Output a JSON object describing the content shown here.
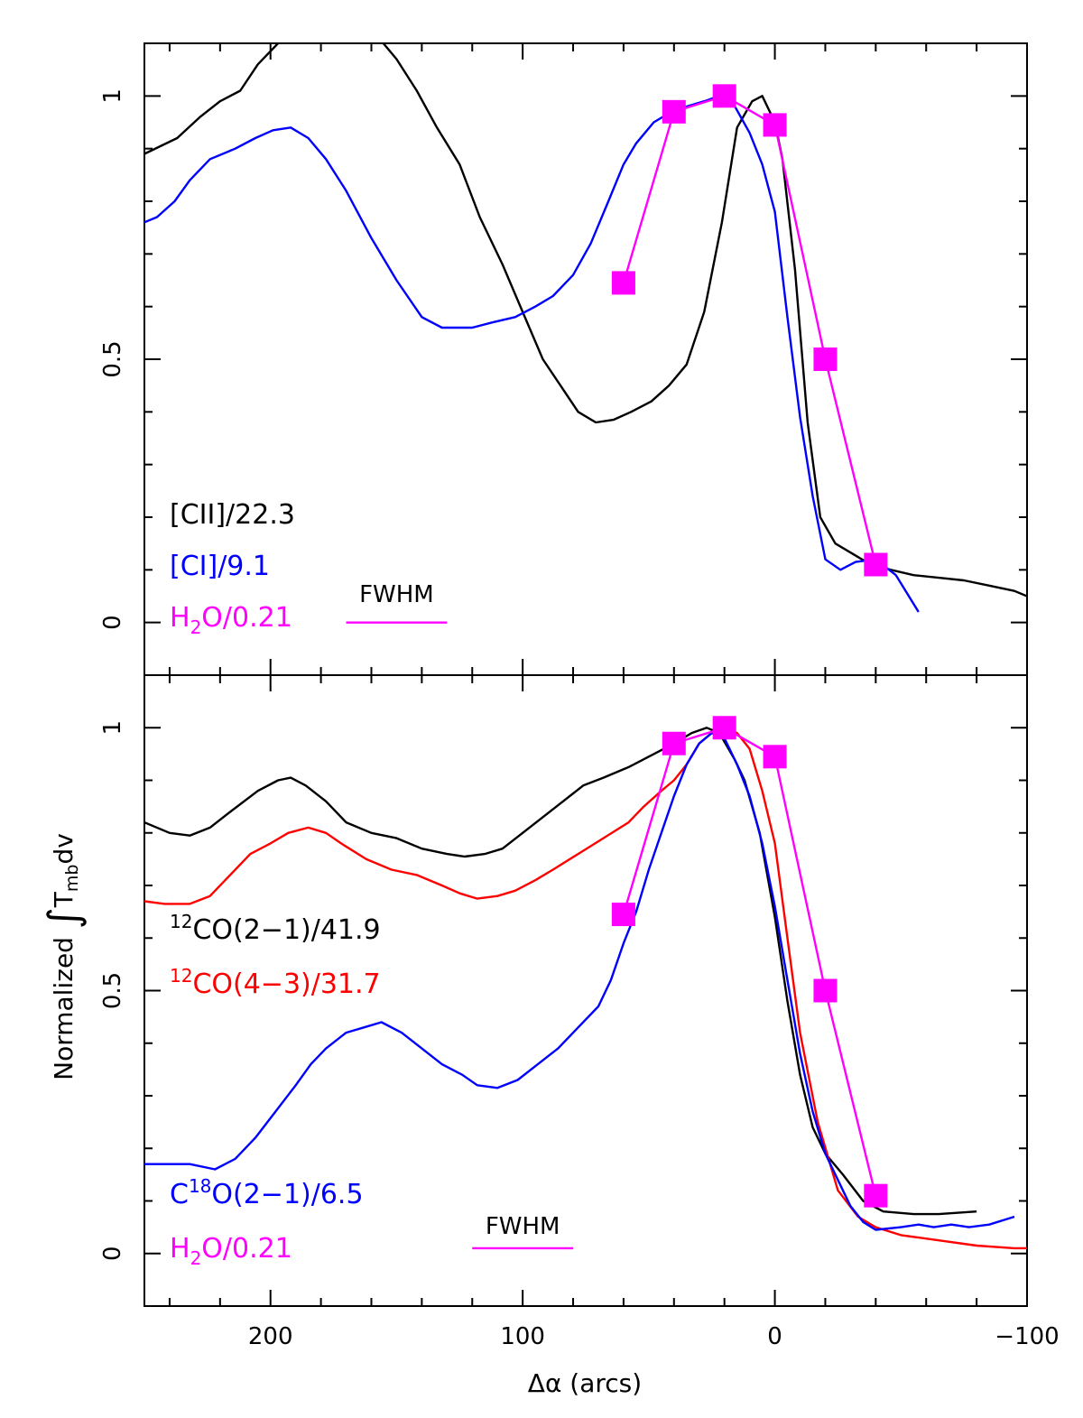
{
  "colors": {
    "cii": "#000000",
    "ci": "#0000ff",
    "h2o": "#ff00ff",
    "co21": "#000000",
    "co43": "#ff0000",
    "c18o": "#0000ff"
  },
  "chart_data": {
    "type": "line",
    "xlabel": "Δα (arcs)",
    "ylabel": "Normalized ∫T_mb dv",
    "ylabel_parts": {
      "prefix": "Normalized ",
      "integral": "∫",
      "t": "T",
      "sub": "mb",
      "suffix": "dv"
    },
    "xlim": [
      250,
      -100
    ],
    "x_ticks": [
      200,
      100,
      0,
      -100
    ],
    "x_tick_labels": [
      "200",
      "100",
      "0",
      "−100"
    ],
    "grid": false,
    "panels": [
      {
        "ylim": [
          -0.1,
          1.1
        ],
        "y_ticks": [
          0,
          0.5,
          1
        ],
        "y_tick_labels": [
          "0",
          "0.5",
          "1"
        ],
        "fwhm": {
          "label": "FWHM",
          "x_start": 170,
          "x_end": 130,
          "y": 0
        },
        "legend": [
          {
            "label": "[CII]/22.3",
            "series": 0
          },
          {
            "label": "[CI]/9.1",
            "series": 1
          },
          {
            "label_main": "H",
            "label_sub": "2",
            "label_rest": "O/0.21",
            "series": 2
          }
        ],
        "series": [
          {
            "name": "[CII]/22.3",
            "color_key": "cii",
            "x": [
              250,
              237,
              228,
              220,
              212,
              205,
              197,
              188,
              180,
              170,
              163,
              157,
              150,
              142,
              134,
              125,
              117,
              108,
              100,
              92,
              85,
              78,
              71,
              64,
              57,
              49,
              42,
              35,
              28,
              21,
              15,
              9,
              5,
              0,
              -3,
              -8,
              -13,
              -18,
              -24,
              -31,
              -38,
              -46,
              -55,
              -65,
              -75,
              -85,
              -95,
              -100
            ],
            "y": [
              0.89,
              0.92,
              0.96,
              0.99,
              1.01,
              1.06,
              1.1,
              1.14,
              1.17,
              1.17,
              1.13,
              1.11,
              1.07,
              1.01,
              0.94,
              0.87,
              0.77,
              0.68,
              0.59,
              0.5,
              0.45,
              0.4,
              0.38,
              0.385,
              0.4,
              0.42,
              0.45,
              0.49,
              0.59,
              0.76,
              0.94,
              0.99,
              1.0,
              0.95,
              0.88,
              0.67,
              0.38,
              0.2,
              0.15,
              0.13,
              0.11,
              0.1,
              0.09,
              0.085,
              0.08,
              0.07,
              0.06,
              0.05
            ]
          },
          {
            "name": "[CI]/9.1",
            "color_key": "ci",
            "x": [
              250,
              245,
              238,
              232,
              224,
              214,
              206,
              199,
              192,
              185,
              178,
              170,
              160,
              150,
              140,
              132,
              120,
              112,
              103,
              95,
              88,
              80,
              73,
              66,
              60,
              55,
              48,
              41,
              35,
              28,
              22,
              17,
              10,
              5,
              0,
              -5,
              -10,
              -15,
              -20,
              -26,
              -32,
              -40,
              -48,
              -57
            ],
            "y": [
              0.76,
              0.77,
              0.8,
              0.84,
              0.88,
              0.9,
              0.92,
              0.935,
              0.94,
              0.92,
              0.88,
              0.82,
              0.73,
              0.65,
              0.58,
              0.56,
              0.56,
              0.57,
              0.58,
              0.6,
              0.62,
              0.66,
              0.72,
              0.8,
              0.87,
              0.91,
              0.95,
              0.97,
              0.98,
              0.99,
              1.0,
              0.99,
              0.93,
              0.87,
              0.78,
              0.58,
              0.39,
              0.24,
              0.12,
              0.1,
              0.115,
              0.12,
              0.09,
              0.02
            ]
          },
          {
            "name": "H2O/0.21",
            "color_key": "h2o",
            "markers": true,
            "x": [
              60,
              40,
              20,
              0,
              -20,
              -40
            ],
            "y": [
              0.645,
              0.97,
              1.0,
              0.945,
              0.5,
              0.11
            ]
          }
        ]
      },
      {
        "ylim": [
          -0.1,
          1.1
        ],
        "y_ticks": [
          0,
          0.5,
          1
        ],
        "y_tick_labels": [
          "0",
          "0.5",
          "1"
        ],
        "fwhm": {
          "label": "FWHM",
          "x_start": 120,
          "x_end": 80,
          "y": 0.01
        },
        "legend": [
          {
            "label_sup": "12",
            "label_rest": "CO(2−1)/41.9",
            "series": 0
          },
          {
            "label_sup": "12",
            "label_rest": "CO(4−3)/31.7",
            "series": 1
          },
          {
            "label_main": "C",
            "label_sup": "18",
            "label_rest": "O(2−1)/6.5",
            "series": 2
          },
          {
            "label_main": "H",
            "label_sub": "2",
            "label_rest": "O/0.21",
            "series": 3
          }
        ],
        "series": [
          {
            "name": "12CO(2-1)/41.9",
            "color_key": "co21",
            "x": [
              250,
              240,
              232,
              224,
              216,
              205,
              197,
              192,
              186,
              178,
              170,
              160,
              150,
              140,
              130,
              123,
              115,
              108,
              100,
              92,
              84,
              76,
              68,
              58,
              48,
              40,
              33,
              27,
              22,
              16,
              12,
              6,
              0,
              -5,
              -10,
              -15,
              -20,
              -27,
              -35,
              -43,
              -55,
              -65,
              -80
            ],
            "y": [
              0.82,
              0.8,
              0.795,
              0.81,
              0.84,
              0.88,
              0.9,
              0.905,
              0.89,
              0.86,
              0.82,
              0.8,
              0.79,
              0.77,
              0.76,
              0.755,
              0.76,
              0.77,
              0.8,
              0.83,
              0.86,
              0.89,
              0.905,
              0.925,
              0.95,
              0.97,
              0.99,
              1.0,
              0.99,
              0.94,
              0.9,
              0.8,
              0.64,
              0.48,
              0.34,
              0.24,
              0.19,
              0.15,
              0.1,
              0.08,
              0.075,
              0.075,
              0.08
            ]
          },
          {
            "name": "12CO(4-3)/31.7",
            "color_key": "co43",
            "x": [
              250,
              242,
              232,
              224,
              216,
              208,
              200,
              193,
              185,
              178,
              172,
              162,
              152,
              142,
              132,
              125,
              118,
              110,
              103,
              95,
              88,
              78,
              68,
              58,
              52,
              45,
              40,
              35,
              30,
              25,
              20,
              15,
              10,
              5,
              0,
              -5,
              -10,
              -17,
              -25,
              -33,
              -40,
              -50,
              -65,
              -80,
              -95,
              -100
            ],
            "y": [
              0.67,
              0.665,
              0.665,
              0.68,
              0.72,
              0.76,
              0.78,
              0.8,
              0.81,
              0.8,
              0.78,
              0.75,
              0.73,
              0.72,
              0.7,
              0.685,
              0.675,
              0.68,
              0.69,
              0.71,
              0.73,
              0.76,
              0.79,
              0.82,
              0.85,
              0.88,
              0.9,
              0.93,
              0.97,
              0.99,
              1.0,
              0.99,
              0.96,
              0.88,
              0.78,
              0.6,
              0.42,
              0.25,
              0.12,
              0.07,
              0.05,
              0.035,
              0.025,
              0.015,
              0.01,
              0.01
            ]
          },
          {
            "name": "C18O(2-1)/6.5",
            "color_key": "c18o",
            "x": [
              250,
              240,
              232,
              222,
              214,
              206,
              198,
              190,
              184,
              178,
              170,
              163,
              156,
              148,
              140,
              132,
              124,
              118,
              110,
              102,
              94,
              86,
              78,
              70,
              65,
              60,
              55,
              50,
              45,
              40,
              35,
              30,
              25,
              20,
              15,
              10,
              5,
              0,
              -5,
              -10,
              -15,
              -20,
              -25,
              -30,
              -35,
              -40,
              -50,
              -57,
              -63,
              -70,
              -77,
              -85,
              -95
            ],
            "y": [
              0.17,
              0.17,
              0.17,
              0.16,
              0.18,
              0.22,
              0.27,
              0.32,
              0.36,
              0.39,
              0.42,
              0.43,
              0.44,
              0.42,
              0.39,
              0.36,
              0.34,
              0.32,
              0.315,
              0.33,
              0.36,
              0.39,
              0.43,
              0.47,
              0.52,
              0.59,
              0.65,
              0.73,
              0.8,
              0.87,
              0.93,
              0.97,
              0.99,
              0.98,
              0.93,
              0.87,
              0.78,
              0.66,
              0.52,
              0.38,
              0.27,
              0.19,
              0.14,
              0.09,
              0.06,
              0.045,
              0.05,
              0.055,
              0.05,
              0.055,
              0.05,
              0.055,
              0.07
            ]
          },
          {
            "name": "H2O/0.21",
            "color_key": "h2o",
            "markers": true,
            "x": [
              60,
              40,
              20,
              0,
              -20,
              -40
            ],
            "y": [
              0.645,
              0.97,
              1.0,
              0.945,
              0.5,
              0.11
            ]
          }
        ]
      }
    ]
  }
}
